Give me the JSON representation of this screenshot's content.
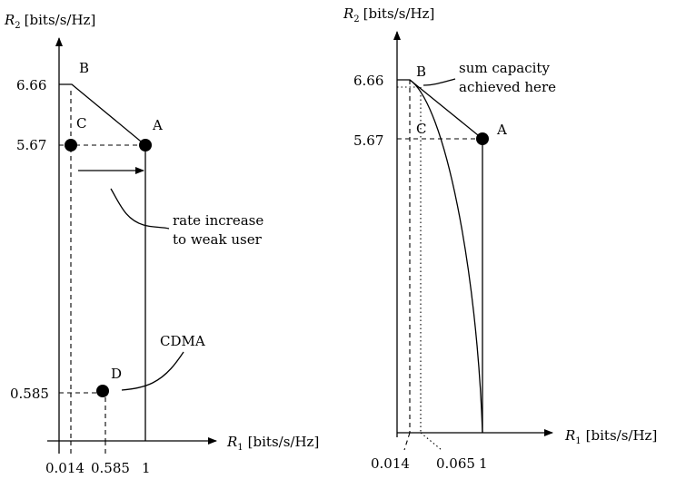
{
  "left_panel": {
    "y_axis_symbol": "R",
    "y_axis_subscript": "2",
    "y_axis_units": "[bits/s/Hz]",
    "x_axis_symbol": "R",
    "x_axis_subscript": "1",
    "x_axis_units": "[bits/s/Hz]",
    "y_ticks": [
      "6.66",
      "5.67",
      "0.585"
    ],
    "x_ticks": [
      "0.014",
      "0.585",
      "1"
    ],
    "points": [
      "A",
      "B",
      "C",
      "D"
    ],
    "annotations": {
      "rate_increase_line1": "rate increase",
      "rate_increase_line2": "to weak user",
      "cdma": "CDMA"
    }
  },
  "right_panel": {
    "y_axis_symbol": "R",
    "y_axis_subscript": "2",
    "y_axis_units": "[bits/s/Hz]",
    "x_axis_symbol": "R",
    "x_axis_subscript": "1",
    "x_axis_units": "[bits/s/Hz]",
    "y_ticks": [
      "6.66",
      "5.67"
    ],
    "x_ticks": [
      "0.014",
      "0.065",
      "1"
    ],
    "points": [
      "A",
      "B",
      "C"
    ],
    "annotations": {
      "sum_capacity_line1": "sum capacity",
      "sum_capacity_line2": "achieved here"
    }
  }
}
